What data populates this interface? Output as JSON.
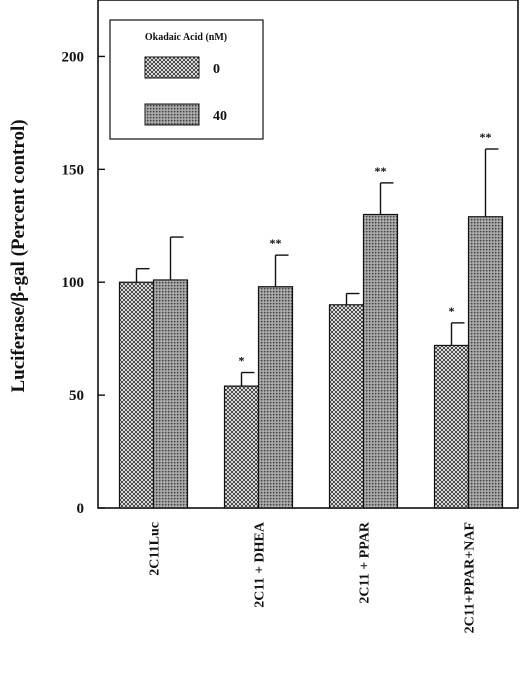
{
  "chart_data": {
    "type": "bar",
    "title": "",
    "xlabel": "",
    "ylabel": "Luciferase/β-gal (Percent control)",
    "ylim": [
      0,
      225
    ],
    "yticks": [
      0,
      50,
      100,
      150,
      200
    ],
    "grid": false,
    "legend": {
      "title": "Okadaic Acid (nM)",
      "placement": "top-left"
    },
    "categories": [
      "2C11Luc",
      "2C11 + DHEA",
      "2C11 + PPAR",
      "2C11+PPAR+NAF"
    ],
    "series": [
      {
        "name": "0",
        "pattern": "crosshatch",
        "values": [
          100,
          54,
          90,
          72
        ],
        "errors": [
          6,
          6,
          5,
          10
        ],
        "significance": [
          "",
          "*",
          "",
          "*"
        ]
      },
      {
        "name": "40",
        "pattern": "dense-dots",
        "values": [
          101,
          98,
          130,
          129
        ],
        "errors": [
          19,
          14,
          14,
          30
        ],
        "significance": [
          "",
          "**",
          "**",
          "**"
        ]
      }
    ]
  }
}
